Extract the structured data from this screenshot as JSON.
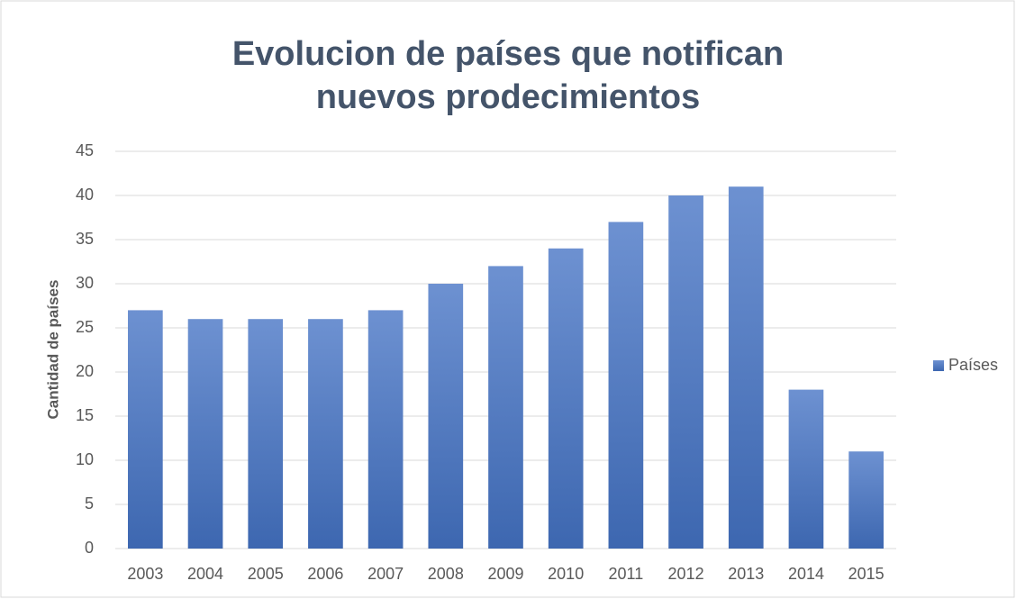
{
  "chart_data": {
    "type": "bar",
    "title": "Evolucion de países que notifican nuevos prodecimientos",
    "y_label": "Cantidad de países",
    "categories": [
      "2003",
      "2004",
      "2005",
      "2006",
      "2007",
      "2008",
      "2009",
      "2010",
      "2011",
      "2012",
      "2013",
      "2014",
      "2015"
    ],
    "series": [
      {
        "name": "Países",
        "color": "#4472c4",
        "values": [
          27,
          26,
          26,
          26,
          27,
          30,
          32,
          34,
          37,
          40,
          41,
          18,
          11
        ]
      }
    ],
    "ylim": [
      0,
      45
    ],
    "yticks": [
      0,
      5,
      10,
      15,
      20,
      25,
      30,
      35,
      40,
      45
    ],
    "grid": true,
    "legend": "right"
  }
}
